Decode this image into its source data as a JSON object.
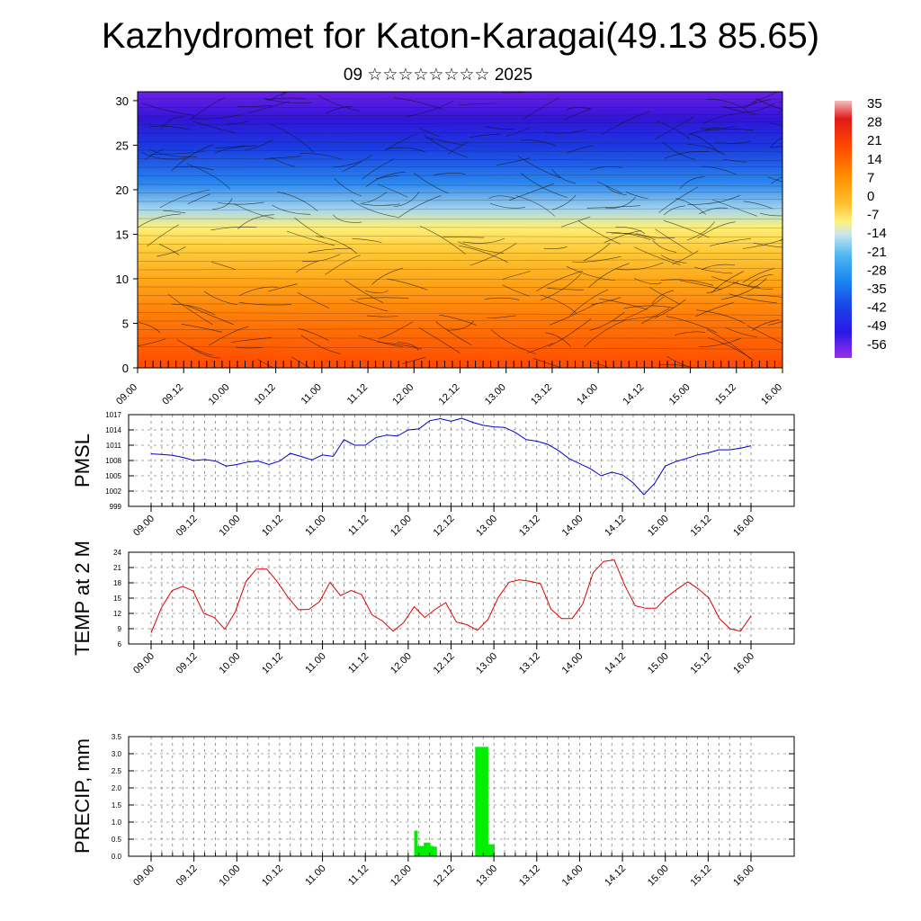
{
  "title": "Kazhydromet for Katon-Karagai(49.13 85.65)",
  "subtitle": "09 ☆☆☆☆☆☆☆☆ 2025",
  "colorbar": {
    "labels": [
      "35",
      "28",
      "21",
      "14",
      "7",
      "0",
      "-7",
      "-14",
      "-21",
      "-28",
      "-35",
      "-42",
      "-49",
      "-56"
    ],
    "colors": [
      "#f0b0b0",
      "#e02020",
      "#ff5a00",
      "#ff9a10",
      "#ffd040",
      "#fff07a",
      "#c8e6f0",
      "#60c0f0",
      "#1e8cf0",
      "#1e40e8",
      "#3a14e8",
      "#8a2ae8"
    ]
  },
  "chart_data": [
    {
      "type": "heatmap",
      "yticks": [
        "0",
        "5",
        "10",
        "15",
        "20",
        "25",
        "30"
      ],
      "ylim": [
        0,
        31
      ],
      "xticks": [
        "09.00",
        "09.12",
        "10.00",
        "10.12",
        "11.00",
        "11.12",
        "12.00",
        "12.12",
        "13.00",
        "13.12",
        "14.00",
        "14.12",
        "15.00",
        "15.12",
        "16.00"
      ]
    },
    {
      "type": "line",
      "ylabel": "PMSL",
      "ylim": [
        999,
        1017
      ],
      "yticks": [
        "999",
        "1002",
        "1005",
        "1008",
        "1011",
        "1014",
        "1017"
      ],
      "xticks": [
        "09.00",
        "09.12",
        "10.00",
        "10.12",
        "11.00",
        "11.12",
        "12.00",
        "12.12",
        "13.00",
        "13.12",
        "14.00",
        "14.12",
        "15.00",
        "15.12",
        "16.00"
      ],
      "series": [
        {
          "color": "#0000cc",
          "values": [
            1009.3,
            1009.2,
            1009,
            1008.6,
            1008,
            1008.2,
            1007.9,
            1006.9,
            1007.2,
            1007.7,
            1007.9,
            1007.2,
            1007.9,
            1009.4,
            1008.8,
            1008.1,
            1009.1,
            1008.8,
            1012.1,
            1011,
            1011,
            1012.5,
            1013,
            1012.8,
            1014,
            1014.2,
            1015.8,
            1016.2,
            1015.7,
            1016.3,
            1015.5,
            1014.9,
            1014.6,
            1014.5,
            1013.5,
            1012.1,
            1011.8,
            1011.2,
            1010,
            1008.4,
            1007.4,
            1006.4,
            1005,
            1005.7,
            1005.2,
            1003.6,
            1001.3,
            1003.5,
            1006.9,
            1007.8,
            1008.4,
            1009.1,
            1009.5,
            1010.1,
            1010.1,
            1010.4,
            1010.9
          ]
        }
      ]
    },
    {
      "type": "line",
      "ylabel": "TEMP at 2 M",
      "ylim": [
        6,
        24
      ],
      "yticks": [
        "6",
        "9",
        "12",
        "15",
        "18",
        "21",
        "24"
      ],
      "xticks": [
        "09.00",
        "09.12",
        "10.00",
        "10.12",
        "11.00",
        "11.12",
        "12.00",
        "12.12",
        "13.00",
        "13.12",
        "14.00",
        "14.12",
        "15.00",
        "15.12",
        "16.00"
      ],
      "series": [
        {
          "color": "#e00000",
          "values": [
            8.2,
            13.2,
            16.5,
            17.3,
            16.4,
            12,
            11.2,
            8.9,
            12.3,
            18.2,
            20.7,
            20.7,
            18.2,
            15.2,
            12.7,
            12.8,
            14.3,
            18.1,
            15.5,
            16.5,
            15.7,
            11.7,
            10.5,
            8.5,
            10.2,
            13.3,
            11.2,
            12.8,
            14.1,
            10.3,
            9.8,
            8.7,
            10.8,
            15.2,
            18.1,
            18.6,
            18.3,
            17.8,
            12.8,
            11,
            11,
            13.8,
            20,
            22.2,
            22.5,
            17.5,
            13.5,
            13,
            13,
            15.2,
            16.8,
            18.2,
            16.8,
            15,
            11,
            9,
            8.5,
            11.5
          ]
        }
      ]
    },
    {
      "type": "bar",
      "ylabel": "PRECIP, mm",
      "ylim": [
        0,
        3.5
      ],
      "yticks": [
        "0.0",
        "0.5",
        "1.0",
        "1.5",
        "2.0",
        "2.5",
        "3.0",
        "3.5"
      ],
      "xticks": [
        "09.00",
        "09.12",
        "10.00",
        "10.12",
        "11.00",
        "11.12",
        "12.00",
        "12.12",
        "13.00",
        "13.12",
        "14.00",
        "14.12",
        "15.00",
        "15.12",
        "16.00"
      ],
      "series": [
        {
          "color": "#00ee00",
          "values": [
            0,
            0,
            0,
            0,
            0,
            0,
            0,
            0,
            0,
            0,
            0,
            0,
            0,
            0,
            0,
            0,
            0,
            0,
            0,
            0,
            0,
            0,
            0,
            0,
            0,
            0,
            0,
            0,
            0,
            0,
            0,
            0,
            0,
            0,
            0,
            0,
            0,
            0,
            0,
            0,
            0,
            0,
            0,
            0,
            0,
            0,
            0,
            0,
            0,
            0,
            0,
            0,
            0,
            0,
            0,
            0,
            0,
            0,
            0,
            0,
            0,
            0,
            0,
            0,
            0,
            0,
            0,
            0,
            0,
            0,
            0,
            0,
            0,
            0,
            0,
            0,
            0,
            0,
            0,
            0,
            0,
            0,
            0.75,
            0.3,
            0.3,
            0.4,
            0.4,
            0.3,
            0.28,
            0,
            0,
            0,
            0,
            0,
            0,
            0,
            0,
            0,
            0,
            0,
            0,
            3.2,
            3.2,
            3.2,
            3.2,
            0.35,
            0.35,
            0,
            0,
            0,
            0,
            0,
            0,
            0,
            0,
            0,
            0,
            0,
            0,
            0,
            0,
            0,
            0,
            0,
            0,
            0,
            0,
            0,
            0,
            0,
            0,
            0,
            0,
            0,
            0,
            0,
            0,
            0,
            0,
            0,
            0,
            0,
            0,
            0,
            0,
            0,
            0,
            0,
            0,
            0,
            0,
            0,
            0,
            0,
            0,
            0,
            0,
            0,
            0,
            0,
            0,
            0,
            0,
            0,
            0,
            0,
            0,
            0,
            0,
            0,
            0,
            0,
            0,
            0,
            0,
            0,
            0,
            0,
            0,
            0,
            0,
            0,
            0,
            0,
            0,
            0,
            0,
            0
          ]
        }
      ]
    }
  ]
}
